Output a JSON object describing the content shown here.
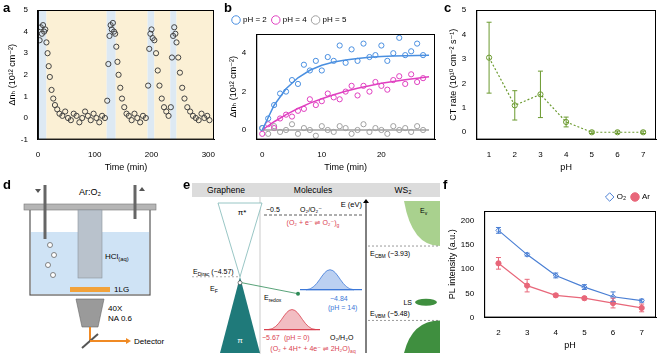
{
  "chart_data": [
    {
      "panel": "a",
      "type": "scatter",
      "x_label": "Time (min)",
      "y_label": "Δnₕ (10¹² cm⁻²)",
      "xlim": [
        0,
        310
      ],
      "xticks": [
        0,
        100,
        200,
        300
      ],
      "ylim": [
        -1,
        5
      ],
      "yticks": [
        -1,
        0,
        1,
        2,
        3,
        4,
        5
      ],
      "grid": false,
      "marker": "open circle",
      "color": "#444444",
      "x": [
        3,
        5,
        7,
        9,
        11,
        13,
        15,
        17,
        19,
        21,
        24,
        27,
        30,
        34,
        38,
        43,
        48,
        53,
        58,
        63,
        68,
        73,
        78,
        83,
        88,
        93,
        98,
        103,
        108,
        113,
        118,
        122,
        124,
        126,
        128,
        130,
        132,
        134,
        136,
        138,
        140,
        142,
        145,
        148,
        152,
        156,
        160,
        165,
        170,
        175,
        180,
        185,
        190,
        194,
        196,
        198,
        200,
        202,
        205,
        208,
        211,
        214,
        218,
        222,
        226,
        230,
        234,
        236,
        238,
        240,
        242,
        244,
        247,
        250,
        254,
        258,
        263,
        268,
        273,
        278,
        283,
        288,
        293,
        298,
        302
      ],
      "values": [
        3.6,
        4.2,
        3.9,
        4.3,
        4.0,
        4.1,
        3.5,
        3.0,
        2.4,
        1.9,
        1.3,
        0.9,
        0.6,
        0.4,
        0.2,
        0.1,
        0.3,
        0.0,
        -0.1,
        0.2,
        0.1,
        -0.2,
        0.0,
        0.3,
        0.1,
        -0.1,
        0.2,
        0.0,
        -0.2,
        0.1,
        0.0,
        0.8,
        2.5,
        3.8,
        4.3,
        4.1,
        4.4,
        4.0,
        3.9,
        3.3,
        2.6,
        2.0,
        1.4,
        0.9,
        0.5,
        0.2,
        0.1,
        -0.1,
        0.2,
        0.0,
        -0.2,
        0.1,
        0.0,
        1.5,
        3.2,
        3.9,
        4.1,
        3.7,
        3.6,
        3.0,
        2.2,
        1.5,
        0.9,
        0.5,
        0.3,
        0.1,
        0.5,
        2.8,
        3.8,
        4.2,
        3.9,
        3.5,
        2.8,
        2.1,
        1.4,
        0.9,
        0.5,
        0.3,
        0.1,
        0.0,
        -0.1,
        0.2,
        0.0,
        0.1,
        -0.1
      ],
      "shaded_regions": [
        {
          "start": 0,
          "end": 15,
          "color": "#dde9f3"
        },
        {
          "start": 15,
          "end": 121,
          "color": "#fbf0d5"
        },
        {
          "start": 121,
          "end": 137,
          "color": "#dde9f3"
        },
        {
          "start": 137,
          "end": 193,
          "color": "#fbf0d5"
        },
        {
          "start": 193,
          "end": 205,
          "color": "#dde9f3"
        },
        {
          "start": 205,
          "end": 233,
          "color": "#fbf0d5"
        },
        {
          "start": 233,
          "end": 244,
          "color": "#dde9f3"
        },
        {
          "start": 244,
          "end": 310,
          "color": "#fbf0d5"
        }
      ]
    },
    {
      "panel": "b",
      "type": "scatter",
      "x_label": "Time (min)",
      "y_label": "Δnₕ (10¹² cm⁻²)",
      "xlim": [
        -1,
        29
      ],
      "xticks": [
        0,
        10,
        20
      ],
      "ylim": [
        -0.5,
        5
      ],
      "yticks": [
        0,
        2,
        4
      ],
      "grid": false,
      "legend": "upper left",
      "series": [
        {
          "name": "pH = 2",
          "color": "#4a8fe0",
          "marker": "open circle",
          "x": [
            0,
            1,
            2,
            3,
            4,
            5,
            6,
            7,
            8,
            9,
            10,
            11,
            12,
            13,
            14,
            15,
            16,
            17,
            18,
            19,
            20,
            21,
            22,
            23,
            24,
            25,
            26,
            27
          ],
          "values": [
            0.1,
            0.6,
            1.3,
            1.9,
            2.0,
            2.6,
            2.4,
            3.4,
            3.1,
            3.6,
            3.1,
            3.8,
            3.6,
            4.4,
            3.5,
            4.2,
            3.6,
            4.5,
            3.8,
            3.9,
            4.4,
            3.6,
            4.0,
            4.8,
            3.9,
            4.1,
            4.5,
            3.9
          ],
          "fit": {
            "x": [
              0,
              2,
              4,
              6,
              8,
              10,
              12,
              14,
              16,
              18,
              20,
              22,
              24,
              26,
              28
            ],
            "values": [
              0,
              1.29,
              2.15,
              2.72,
              3.11,
              3.37,
              3.54,
              3.65,
              3.73,
              3.79,
              3.83,
              3.85,
              3.87,
              3.88,
              3.89
            ]
          }
        },
        {
          "name": "pH = 4",
          "color": "#e040c0",
          "marker": "open circle",
          "x": [
            0,
            1,
            2,
            3,
            4,
            5,
            6,
            7,
            8,
            9,
            10,
            11,
            12,
            13,
            14,
            15,
            16,
            17,
            18,
            19,
            20,
            21,
            22,
            23,
            24,
            25,
            26,
            27
          ],
          "values": [
            -0.2,
            0.3,
            0.1,
            0.6,
            0.8,
            0.7,
            1.0,
            1.1,
            1.6,
            1.3,
            1.5,
            1.9,
            1.7,
            1.6,
            2.0,
            2.3,
            1.8,
            2.3,
            2.0,
            2.5,
            2.3,
            2.1,
            2.6,
            2.8,
            2.4,
            2.9,
            2.5,
            2.7
          ],
          "fit": {
            "x": [
              0,
              2,
              4,
              6,
              8,
              10,
              12,
              14,
              16,
              18,
              20,
              22,
              24,
              26,
              28
            ],
            "values": [
              0,
              0.43,
              0.8,
              1.12,
              1.4,
              1.63,
              1.84,
              2.02,
              2.17,
              2.31,
              2.43,
              2.53,
              2.62,
              2.7,
              2.77
            ]
          }
        },
        {
          "name": "pH = 5",
          "color": "#a0a0a0",
          "marker": "open circle",
          "x": [
            0,
            1,
            2,
            3,
            4,
            5,
            6,
            7,
            8,
            9,
            10,
            11,
            12,
            13,
            14,
            15,
            16,
            17,
            18,
            19,
            20,
            21,
            22,
            23,
            24,
            25,
            26,
            27
          ],
          "values": [
            0.1,
            -0.2,
            0.2,
            -0.1,
            0.0,
            0.3,
            -0.2,
            0.1,
            0.0,
            -0.3,
            0.2,
            0.0,
            -0.1,
            0.2,
            0.1,
            -0.2,
            0.0,
            0.3,
            -0.1,
            0.1,
            0.0,
            -0.2,
            0.2,
            0.0,
            0.1,
            -0.1,
            0.2,
            0.0
          ],
          "fit": {
            "x": [
              0,
              2,
              4,
              6,
              8,
              10,
              12,
              14,
              16,
              18,
              20,
              22,
              24,
              26,
              28
            ],
            "values": [
              0,
              0,
              0,
              0,
              0,
              0,
              0,
              0,
              0,
              0,
              0,
              0,
              0,
              0,
              0
            ]
          }
        }
      ]
    },
    {
      "panel": "c",
      "type": "line",
      "x_label": "pH",
      "y_label": "CT rate (10¹⁰ cm⁻² s⁻¹)",
      "xlim": [
        0.5,
        7.5
      ],
      "xticks": [
        1,
        2,
        3,
        4,
        5,
        6,
        7
      ],
      "ylim": [
        -0.3,
        5
      ],
      "yticks": [
        0,
        1,
        2,
        3,
        4,
        5
      ],
      "grid": false,
      "color": "#6b9a2f",
      "marker": "open circle",
      "line_style": "dotted",
      "x": [
        1,
        2,
        3,
        4,
        5,
        6,
        7
      ],
      "values": [
        3.05,
        1.1,
        1.55,
        0.42,
        0,
        0,
        0
      ],
      "errors": [
        1.45,
        0.6,
        0.95,
        0.2,
        0.05,
        0.05,
        0.05
      ]
    },
    {
      "panel": "f",
      "type": "line",
      "x_label": "pH",
      "y_label": "PL intensity (a.u.)",
      "xlim": [
        1.5,
        7.5
      ],
      "xticks": [
        2,
        3,
        4,
        5,
        6,
        7
      ],
      "ylim": [
        0,
        220
      ],
      "yticks": [
        0,
        50,
        100,
        150,
        200
      ],
      "grid": false,
      "legend": "upper right",
      "series": [
        {
          "name": "O₂",
          "color": "#4a7fd4",
          "marker": "open diamond",
          "line_style": "solid",
          "x": [
            2,
            3,
            4,
            5,
            6,
            7
          ],
          "values": [
            180,
            130,
            87,
            63,
            43,
            35
          ],
          "errors": [
            6,
            3,
            5,
            5,
            10,
            3
          ]
        },
        {
          "name": "Ar",
          "color": "#e8677a",
          "marker": "circle",
          "line_style": "solid",
          "x": [
            2,
            3,
            4,
            5,
            6,
            7
          ],
          "values": [
            112,
            66,
            46,
            40,
            30,
            20
          ],
          "errors": [
            12,
            13,
            3,
            3,
            10,
            8
          ]
        }
      ]
    }
  ],
  "diagrams": {
    "d": {
      "panel": "d",
      "gas_label": "Ar:O₂",
      "solution_label": {
        "text": "HCl",
        "sub": "(aq)"
      },
      "sample_label": "1LG",
      "objective_label": "40X",
      "aperture_label": "NA 0.6",
      "detector_label": "Detector"
    },
    "e": {
      "panel": "e",
      "energy_axis": "E (eV)",
      "columns": [
        "Graphene",
        "Molecules",
        "WS₂"
      ],
      "band_labels": {
        "pi_star": "π*",
        "pi": "π",
        "fermi": {
          "symbol": "E",
          "sub": "F"
        },
        "valence_edge": {
          "symbol": "E",
          "sub": "v"
        },
        "localized_states": "LS"
      },
      "dirac": {
        "symbol": "E",
        "sub": "Dirac",
        "label": "(−4.57)",
        "energy": -4.57
      },
      "cbm": {
        "symbol": "E",
        "sub": "CBM",
        "label": "(−3.93)",
        "energy": -3.93
      },
      "vbm": {
        "symbol": "E",
        "sub": "VBM",
        "label": "(−5.48)",
        "energy": -5.48
      },
      "redox": {
        "symbol": "E",
        "sub": "redox"
      },
      "gas_couple": {
        "level": "−0.5",
        "couple": "O₂/O₂⁻",
        "reaction": {
          "text": "(O₂ + e⁻ ⇌ O₂⁻)",
          "sub": "g"
        }
      },
      "acid_level": {
        "label": "−5.67",
        "condition": "(pH = 0)",
        "energy": -5.67,
        "color": "#d9414f"
      },
      "base_level": {
        "label": "−4.84",
        "condition": "(pH = 14)",
        "energy": -4.84,
        "color": "#3c78d8"
      },
      "aqueous_couple": {
        "couple": "O₂/H₂O",
        "reaction": {
          "text": "(O₂ + 4H⁺ + 4e⁻ ⇌ 2H₂O)",
          "sub": "aq"
        }
      }
    }
  }
}
